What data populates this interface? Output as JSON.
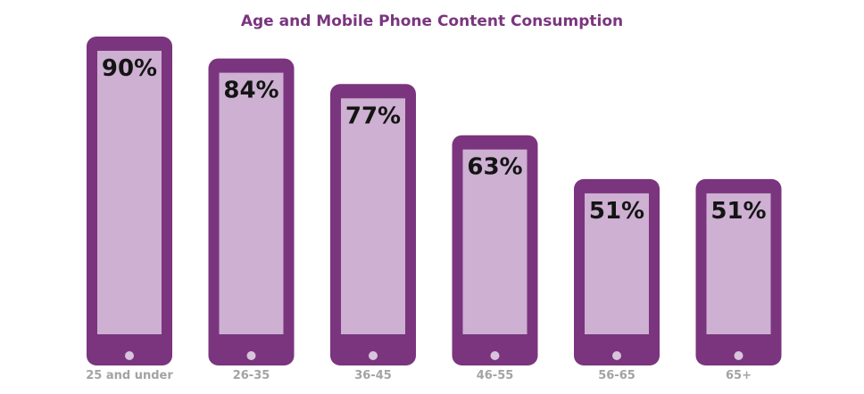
{
  "chart_data": {
    "type": "bar",
    "title": "Age and Mobile Phone Content Consumption",
    "categories": [
      "25 and under",
      "26-35",
      "36-45",
      "46-55",
      "56-65",
      "65+"
    ],
    "values": [
      90,
      84,
      77,
      63,
      51,
      51
    ],
    "value_labels": [
      "90%",
      "84%",
      "77%",
      "63%",
      "51%",
      "51%"
    ],
    "xlabel": "",
    "ylabel": "",
    "ylim": [
      0,
      100
    ],
    "grid": false,
    "colors": {
      "phone_body": "#7a357e",
      "phone_screen": "#cdb0d2",
      "home_button": "#d8c4dc",
      "title": "#7a357e",
      "value_text": "#141414",
      "category_text": "#a3a3a3"
    }
  }
}
